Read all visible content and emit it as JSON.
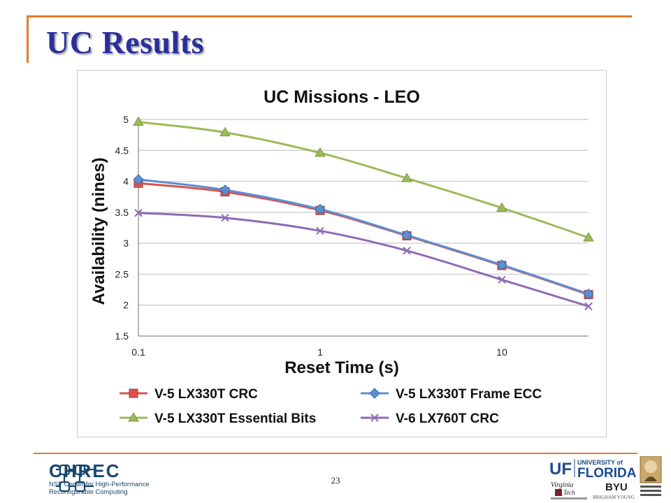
{
  "slide": {
    "title": "UC Results",
    "page_number": "23"
  },
  "footer": {
    "chrec_name": "CHREC",
    "chrec_line1": "NSF Center for High-Performance",
    "chrec_line2": "Reconfigurable Computing",
    "uf_line1": "UNIVERSITY of",
    "uf_line2": "FLORIDA",
    "vt_line1": "Virginia",
    "vt_line2": "Tech",
    "byu": "BYU",
    "byu_sub": "BRIGHAM YOUNG"
  },
  "colors": {
    "accent_rule": "#e07b2a",
    "title_text": "#2a2f9c",
    "chrec_blue": "#17476f"
  },
  "chart_data": {
    "type": "line",
    "title": "UC Missions - LEO",
    "xlabel": "Reset Time (s)",
    "ylabel": "Availability (nines)",
    "x_scale": "log",
    "xlim": [
      0.1,
      30
    ],
    "ylim": [
      1.5,
      5
    ],
    "x_tick_labels": [
      "0.1",
      "1",
      "10"
    ],
    "y_ticks": [
      1.5,
      2,
      2.5,
      3,
      3.5,
      4,
      4.5,
      5
    ],
    "y_tick_labels": [
      "1.5",
      "2",
      "2.5",
      "3",
      "3.5",
      "4",
      "4.5",
      "5"
    ],
    "grid": true,
    "legend_position": "bottom",
    "x": [
      0.1,
      0.3,
      1,
      3,
      10,
      30
    ],
    "series": [
      {
        "name": "V-5 LX330T CRC",
        "color": "#d9534f",
        "marker": "square",
        "values": [
          3.97,
          3.83,
          3.53,
          3.12,
          2.64,
          2.17
        ]
      },
      {
        "name": "V-5 LX330T Frame ECC",
        "color": "#5b8fd4",
        "marker": "diamond",
        "values": [
          4.03,
          3.86,
          3.55,
          3.13,
          2.65,
          2.18
        ]
      },
      {
        "name": "V-5 LX330T Essential Bits",
        "color": "#9bbb59",
        "marker": "triangle",
        "values": [
          4.96,
          4.79,
          4.46,
          4.05,
          3.57,
          3.09
        ]
      },
      {
        "name": "V-6 LX760T CRC",
        "color": "#8e6bb5",
        "marker": "x",
        "values": [
          3.49,
          3.41,
          3.2,
          2.88,
          2.41,
          1.98
        ]
      }
    ]
  }
}
